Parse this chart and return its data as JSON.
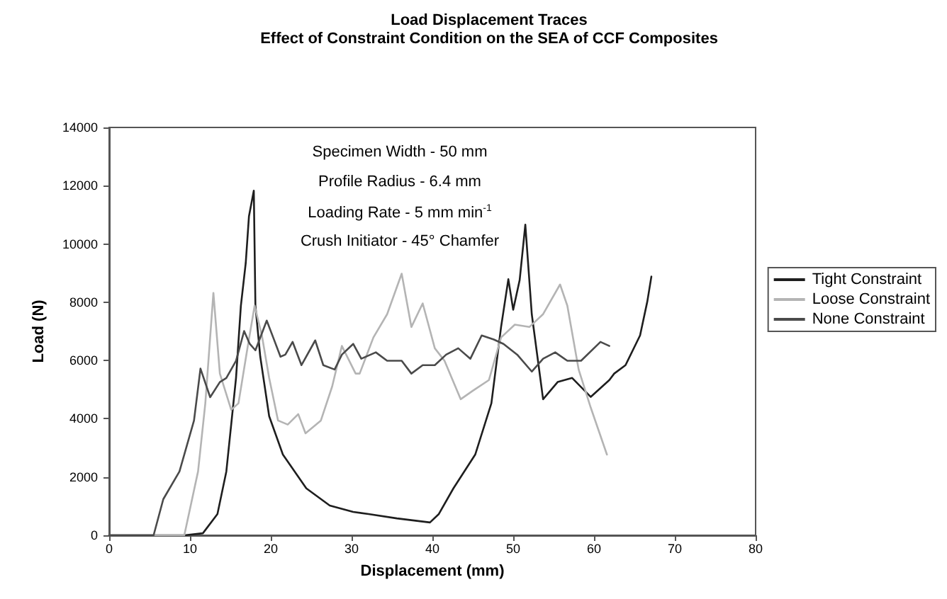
{
  "chart_data": {
    "type": "line",
    "title": "Load Displacement Traces",
    "subtitle": "Effect of Constraint Condition on the SEA of CCF Composites",
    "xlabel": "Displacement (mm)",
    "ylabel": "Load (N)",
    "annotations": [
      "Specimen Width - 50 mm",
      "Profile Radius - 6.4 mm",
      "Loading Rate - 5 mm min$^{-1}$",
      "Crush Initiator - 45° Chamfer"
    ],
    "xlim": [
      0,
      80
    ],
    "xticks": [
      0,
      10,
      20,
      30,
      40,
      50,
      60,
      70,
      80
    ],
    "ylim": [
      0,
      14000
    ],
    "yticks": [
      0,
      2000,
      4000,
      6000,
      8000,
      10000,
      12000,
      14000
    ],
    "grid": false,
    "legend": "right",
    "marker": "none",
    "line_style": "solid",
    "series": [
      {
        "name": "Tight Constraint",
        "color": "#1e1e1e",
        "x": [
          0,
          9.3,
          11.6,
          13.4,
          14.5,
          15.7,
          16.3,
          16.9,
          17.3,
          17.9,
          18.1,
          18.7,
          19.8,
          21.5,
          24.4,
          27.3,
          30.2,
          32.1,
          35.6,
          39.7,
          40.8,
          42.6,
          45.3,
          47.3,
          48.5,
          49.4,
          50,
          50.8,
          51.5,
          52.3,
          53.7,
          55.5,
          57.3,
          59.6,
          61.9,
          62.5,
          63.9,
          65.7,
          66.6,
          67.1
        ],
        "values": [
          0,
          0,
          70,
          730,
          2190,
          5400,
          7880,
          9340,
          10950,
          11830,
          7880,
          6130,
          4090,
          2770,
          1610,
          1020,
          800,
          730,
          580,
          440,
          730,
          1610,
          2770,
          4530,
          7150,
          8790,
          7740,
          8760,
          10660,
          7590,
          4670,
          5260,
          5400,
          4750,
          5330,
          5550,
          5840,
          6860,
          8030,
          8880
        ]
      },
      {
        "name": "Loose Constraint",
        "color": "#b4b4b4",
        "x": [
          0,
          9.3,
          11,
          11.9,
          12.9,
          13.7,
          15.1,
          16,
          17.2,
          18,
          18.9,
          19.8,
          20.9,
          22.1,
          23.4,
          24.3,
          26.2,
          27.6,
          28.8,
          30.5,
          31,
          32.7,
          34.4,
          36.2,
          37.4,
          38.8,
          40.3,
          41.5,
          43.5,
          45,
          47,
          48.5,
          50.2,
          52,
          53.7,
          55.8,
          56.7,
          58.1,
          59.6,
          61.6
        ],
        "values": [
          0,
          0,
          2190,
          4530,
          8320,
          5550,
          4310,
          4530,
          6570,
          7880,
          6860,
          5400,
          3940,
          3800,
          4160,
          3500,
          3940,
          5110,
          6500,
          5550,
          5550,
          6790,
          7590,
          8980,
          7150,
          7960,
          6420,
          5990,
          4670,
          4960,
          5330,
          6790,
          7230,
          7150,
          7590,
          8610,
          7880,
          5690,
          4380,
          2770
        ]
      },
      {
        "name": "None Constraint",
        "color": "#4a4a4a",
        "x": [
          0,
          5.5,
          6.7,
          8.7,
          10.5,
          11.3,
          12.5,
          13.7,
          14.5,
          15.7,
          16.7,
          17.4,
          18.1,
          19.5,
          20.3,
          21.2,
          21.8,
          22.7,
          23.8,
          25.5,
          26.5,
          27.9,
          28.8,
          30.2,
          31.2,
          33,
          34.4,
          36.2,
          37.4,
          38.8,
          40.3,
          41.7,
          43.2,
          44.7,
          46.1,
          47.6,
          48.8,
          50.5,
          52.3,
          53.7,
          55.2,
          56.7,
          58.4,
          60.8,
          61.9
        ],
        "values": [
          0,
          0,
          1240,
          2190,
          3940,
          5720,
          4740,
          5260,
          5400,
          5990,
          7010,
          6570,
          6350,
          7370,
          6790,
          6130,
          6200,
          6640,
          5840,
          6690,
          5840,
          5690,
          6200,
          6570,
          6060,
          6280,
          5990,
          5990,
          5550,
          5840,
          5840,
          6200,
          6420,
          6060,
          6860,
          6720,
          6570,
          6200,
          5620,
          6060,
          6280,
          5990,
          5990,
          6640,
          6500
        ]
      }
    ]
  }
}
